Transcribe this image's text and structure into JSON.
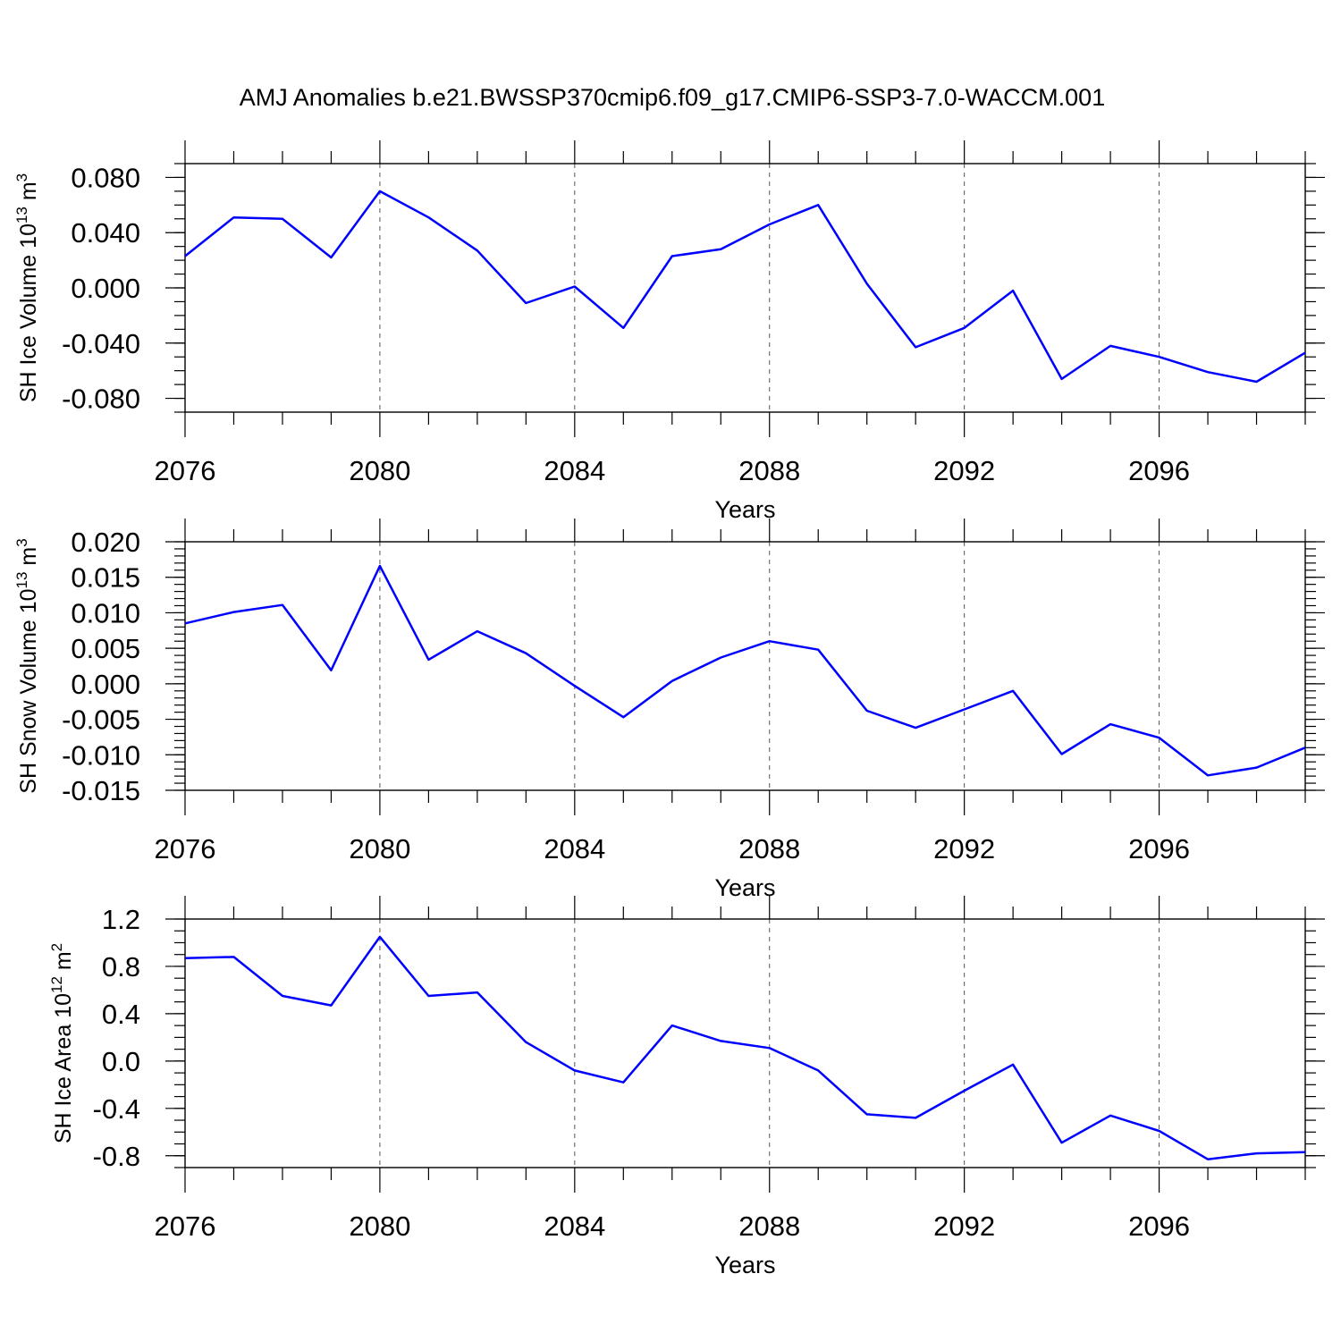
{
  "title": "AMJ Anomalies b.e21.BWSSP370cmip6.f09_g17.CMIP6-SSP3-7.0-WACCM.001",
  "colors": {
    "series": "#0000ff",
    "axis": "#000000",
    "grid": "#555555"
  },
  "chart_data": [
    {
      "type": "line",
      "ylabel": "SH Ice Volume 10",
      "ylabel_exp": "13",
      "ylabel_unit": "m",
      "ylabel_unit_exp": "3",
      "xlabel": "Years",
      "xlim": [
        2076,
        2099
      ],
      "ylim": [
        -0.09,
        0.09
      ],
      "y_ticks": [
        -0.08,
        -0.04,
        0.0,
        0.04,
        0.08
      ],
      "y_tick_labels": [
        "-0.080",
        "-0.040",
        "0.000",
        "0.040",
        "0.080"
      ],
      "y_minor_step": 0.01,
      "x_ticks": [
        2076,
        2080,
        2084,
        2088,
        2092,
        2096
      ],
      "x_tick_labels": [
        "2076",
        "2080",
        "2084",
        "2088",
        "2092",
        "2096"
      ],
      "grid_x": [
        2080,
        2084,
        2088,
        2092,
        2096
      ],
      "x": [
        2076,
        2077,
        2078,
        2079,
        2080,
        2081,
        2082,
        2083,
        2084,
        2085,
        2086,
        2087,
        2088,
        2089,
        2090,
        2091,
        2092,
        2093,
        2094,
        2095,
        2096,
        2097,
        2098,
        2099
      ],
      "series": [
        {
          "values": [
            0.023,
            0.051,
            0.05,
            0.022,
            0.07,
            0.051,
            0.027,
            -0.011,
            0.001,
            -0.029,
            0.023,
            0.028,
            0.046,
            0.06,
            0.003,
            -0.043,
            -0.029,
            -0.002,
            -0.066,
            -0.042,
            -0.05,
            -0.061,
            -0.068,
            -0.047
          ]
        }
      ]
    },
    {
      "type": "line",
      "ylabel": "SH Snow Volume 10",
      "ylabel_exp": "13",
      "ylabel_unit": "m",
      "ylabel_unit_exp": "3",
      "xlabel": "Years",
      "xlim": [
        2076,
        2099
      ],
      "ylim": [
        -0.015,
        0.02
      ],
      "y_ticks": [
        -0.015,
        -0.01,
        -0.005,
        0.0,
        0.005,
        0.01,
        0.015,
        0.02
      ],
      "y_tick_labels": [
        "-0.015",
        "-0.010",
        "-0.005",
        "0.000",
        "0.005",
        "0.010",
        "0.015",
        "0.020"
      ],
      "y_minor_step": 0.001,
      "x_ticks": [
        2076,
        2080,
        2084,
        2088,
        2092,
        2096
      ],
      "x_tick_labels": [
        "2076",
        "2080",
        "2084",
        "2088",
        "2092",
        "2096"
      ],
      "grid_x": [
        2080,
        2084,
        2088,
        2092,
        2096
      ],
      "x": [
        2076,
        2077,
        2078,
        2079,
        2080,
        2081,
        2082,
        2083,
        2084,
        2085,
        2086,
        2087,
        2088,
        2089,
        2090,
        2091,
        2092,
        2093,
        2094,
        2095,
        2096,
        2097,
        2098,
        2099
      ],
      "series": [
        {
          "values": [
            0.0085,
            0.0101,
            0.0111,
            0.0019,
            0.0166,
            0.0034,
            0.0074,
            0.0043,
            -0.0003,
            -0.0047,
            0.0004,
            0.0037,
            0.006,
            0.0048,
            -0.0038,
            -0.0062,
            -0.0036,
            -0.001,
            -0.0099,
            -0.0057,
            -0.0076,
            -0.0129,
            -0.0118,
            -0.009
          ]
        }
      ]
    },
    {
      "type": "line",
      "ylabel": "SH Ice Area 10",
      "ylabel_exp": "12",
      "ylabel_unit": "m",
      "ylabel_unit_exp": "2",
      "xlabel": "Years",
      "xlim": [
        2076,
        2099
      ],
      "ylim": [
        -0.9,
        1.2
      ],
      "y_ticks": [
        -0.8,
        -0.4,
        0.0,
        0.4,
        0.8,
        1.2
      ],
      "y_tick_labels": [
        "-0.8",
        "-0.4",
        "0.0",
        "0.4",
        "0.8",
        "1.2"
      ],
      "y_minor_step": 0.1,
      "x_ticks": [
        2076,
        2080,
        2084,
        2088,
        2092,
        2096
      ],
      "x_tick_labels": [
        "2076",
        "2080",
        "2084",
        "2088",
        "2092",
        "2096"
      ],
      "grid_x": [
        2080,
        2084,
        2088,
        2092,
        2096
      ],
      "x": [
        2076,
        2077,
        2078,
        2079,
        2080,
        2081,
        2082,
        2083,
        2084,
        2085,
        2086,
        2087,
        2088,
        2089,
        2090,
        2091,
        2092,
        2093,
        2094,
        2095,
        2096,
        2097,
        2098,
        2099
      ],
      "series": [
        {
          "values": [
            0.87,
            0.88,
            0.55,
            0.47,
            1.05,
            0.55,
            0.58,
            0.16,
            -0.08,
            -0.18,
            0.3,
            0.17,
            0.11,
            -0.08,
            -0.45,
            -0.48,
            -0.25,
            -0.03,
            -0.69,
            -0.46,
            -0.59,
            -0.83,
            -0.78,
            -0.77
          ]
        }
      ]
    }
  ]
}
